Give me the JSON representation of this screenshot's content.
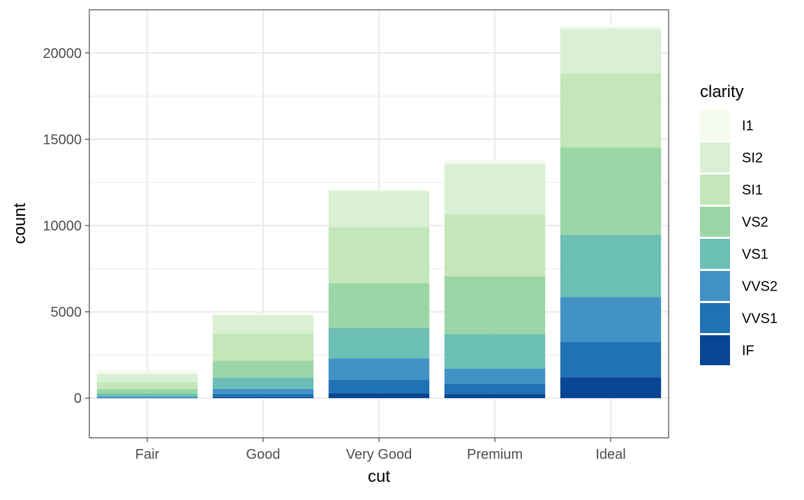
{
  "chart_data": {
    "type": "bar",
    "stacked": true,
    "xlabel": "cut",
    "ylabel": "count",
    "ylim": [
      -2300,
      22500
    ],
    "yticks": [
      0,
      5000,
      10000,
      15000,
      20000
    ],
    "ytick_labels": [
      "0",
      "5000",
      "10000",
      "15000",
      "20000"
    ],
    "grid": true,
    "legend_title": "clarity",
    "legend_position": "right",
    "categories": [
      "Fair",
      "Good",
      "Very Good",
      "Premium",
      "Ideal"
    ],
    "series": [
      {
        "name": "IF",
        "color": "#084594",
        "values": [
          9,
          71,
          268,
          230,
          1212
        ]
      },
      {
        "name": "VVS1",
        "color": "#2171b5",
        "values": [
          17,
          186,
          789,
          616,
          2047
        ]
      },
      {
        "name": "VVS2",
        "color": "#4292c6",
        "values": [
          69,
          286,
          1235,
          870,
          2606
        ]
      },
      {
        "name": "VS1",
        "color": "#6bbfb5",
        "values": [
          170,
          648,
          1775,
          1989,
          3589
        ]
      },
      {
        "name": "VS2",
        "color": "#9ad6a6",
        "values": [
          261,
          978,
          2591,
          3357,
          5071
        ]
      },
      {
        "name": "SI1",
        "color": "#c3e7b8",
        "values": [
          408,
          1560,
          3240,
          3575,
          4282
        ]
      },
      {
        "name": "SI2",
        "color": "#d9f0d4",
        "values": [
          466,
          1081,
          2100,
          2949,
          2598
        ]
      },
      {
        "name": "I1",
        "color": "#f4fbec",
        "values": [
          210,
          96,
          84,
          205,
          146
        ]
      }
    ],
    "legend_order": [
      "I1",
      "SI2",
      "SI1",
      "VS2",
      "VS1",
      "VVS2",
      "VVS1",
      "IF"
    ]
  }
}
